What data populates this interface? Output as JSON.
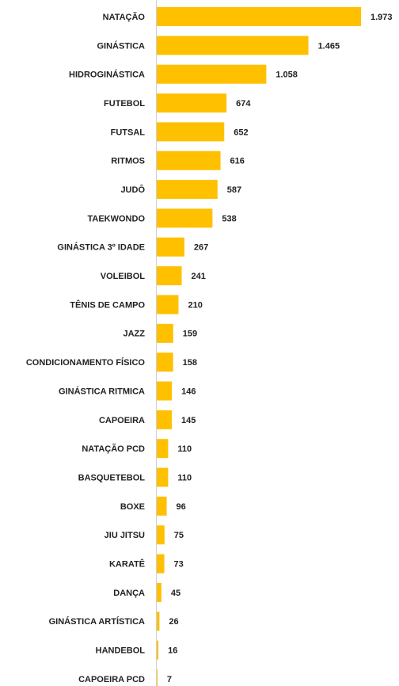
{
  "chart_data": {
    "type": "bar",
    "orientation": "horizontal",
    "color": "#ffc000",
    "categories": [
      "NATAÇÃO",
      "GINÁSTICA",
      "HIDROGINÁSTICA",
      "FUTEBOL",
      "FUTSAL",
      "RITMOS",
      "JUDÔ",
      "TAEKWONDO",
      "GINÁSTICA 3º IDADE",
      "VOLEIBOL",
      "TÊNIS DE CAMPO",
      "JAZZ",
      "CONDICIONAMENTO FÍSICO",
      "GINÁSTICA RITMICA",
      "CAPOEIRA",
      "NATAÇÃO PCD",
      "BASQUETEBOL",
      "BOXE",
      "JIU JITSU",
      "KARATÊ",
      "DANÇA",
      "GINÁSTICA ARTÍSTICA",
      "HANDEBOL",
      "CAPOEIRA PCD"
    ],
    "values": [
      1973,
      1465,
      1058,
      674,
      652,
      616,
      587,
      538,
      267,
      241,
      210,
      159,
      158,
      146,
      145,
      110,
      110,
      96,
      75,
      73,
      45,
      26,
      16,
      7
    ],
    "value_labels": [
      "1.973",
      "1.465",
      "1.058",
      "674",
      "652",
      "616",
      "587",
      "538",
      "267",
      "241",
      "210",
      "159",
      "158",
      "146",
      "145",
      "110",
      "110",
      "96",
      "75",
      "73",
      "45",
      "26",
      "16",
      "7"
    ]
  }
}
